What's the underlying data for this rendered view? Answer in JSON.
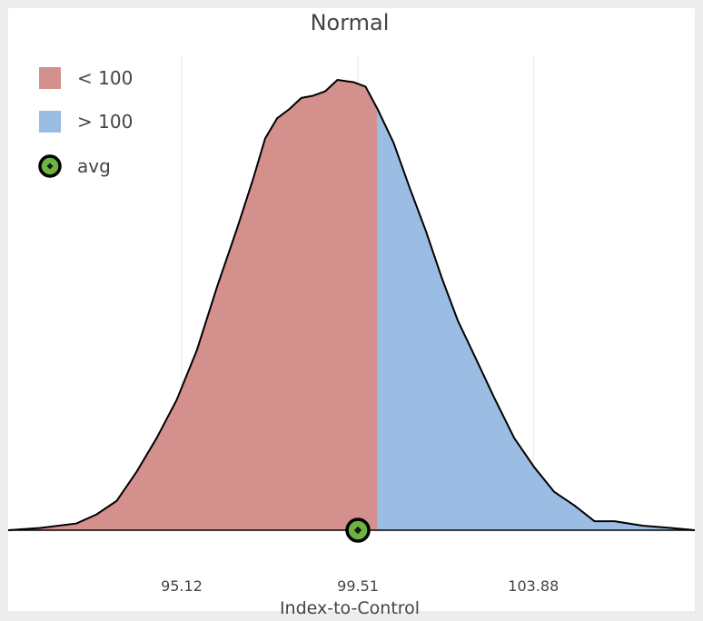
{
  "chart_data": {
    "type": "area",
    "title": "Normal",
    "xlabel": "Index-to-Control",
    "ylabel": "",
    "xlim": [
      90.8,
      107.9
    ],
    "ylim": [
      0,
      1.0
    ],
    "x_ticks": [
      95.12,
      99.51,
      103.88
    ],
    "x_tick_labels": [
      "95.12",
      "99.51",
      "103.88"
    ],
    "grid": "vertical",
    "threshold": 100,
    "series": [
      {
        "name": "< 100",
        "color": "#d4908c"
      },
      {
        "name": "> 100",
        "color": "#9bbce3"
      }
    ],
    "density": {
      "x": [
        90.8,
        91.6,
        92.5,
        93.0,
        93.5,
        94.0,
        94.5,
        95.0,
        95.5,
        96.0,
        96.5,
        96.9,
        97.2,
        97.5,
        97.8,
        98.1,
        98.4,
        98.7,
        99.0,
        99.4,
        99.7,
        100.0,
        100.4,
        100.8,
        101.2,
        101.6,
        102.0,
        102.4,
        102.9,
        103.4,
        103.9,
        104.4,
        104.9,
        105.4,
        105.9,
        106.6,
        107.3,
        107.9
      ],
      "y": [
        0.0,
        0.005,
        0.015,
        0.035,
        0.065,
        0.13,
        0.205,
        0.29,
        0.4,
        0.54,
        0.67,
        0.78,
        0.87,
        0.915,
        0.935,
        0.96,
        0.965,
        0.975,
        1.0,
        0.995,
        0.985,
        0.935,
        0.86,
        0.76,
        0.665,
        0.56,
        0.465,
        0.39,
        0.295,
        0.205,
        0.14,
        0.085,
        0.055,
        0.02,
        0.02,
        0.01,
        0.005,
        0.0
      ]
    },
    "avg": {
      "name": "avg",
      "value": 99.51,
      "color": "#6cb33f"
    },
    "legend_position": "top-left"
  }
}
